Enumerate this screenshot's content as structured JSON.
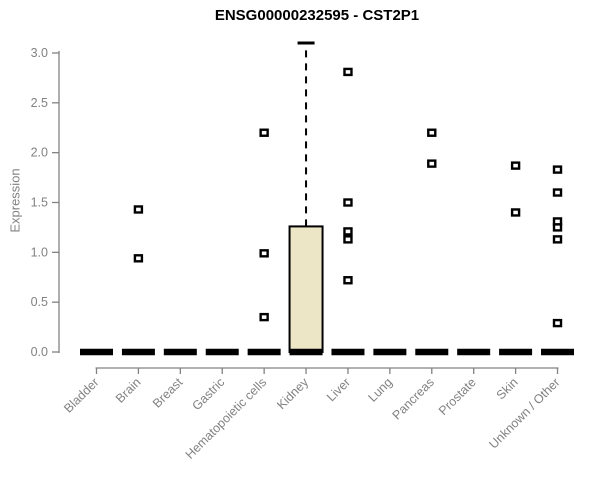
{
  "chart_data": {
    "type": "box",
    "title": "ENSG00000232595 - CST2P1",
    "ylabel": "Expression",
    "xlabel": "",
    "ylim": [
      0,
      3.1
    ],
    "yticks": [
      0.0,
      0.5,
      1.0,
      1.5,
      2.0,
      2.5,
      3.0
    ],
    "grid": false,
    "legend": "none",
    "categories": [
      "Bladder",
      "Brain",
      "Breast",
      "Gastric",
      "Hematopoietic cells",
      "Kidney",
      "Liver",
      "Lung",
      "Pancreas",
      "Prostate",
      "Skin",
      "Unknown / Other"
    ],
    "series": [
      {
        "name": "Bladder",
        "q1": 0,
        "median": 0,
        "q3": 0,
        "whisker_low": 0,
        "whisker_high": 0,
        "outliers": []
      },
      {
        "name": "Brain",
        "q1": 0,
        "median": 0,
        "q3": 0,
        "whisker_low": 0,
        "whisker_high": 0,
        "outliers": [
          1.43,
          0.94
        ]
      },
      {
        "name": "Breast",
        "q1": 0,
        "median": 0,
        "q3": 0,
        "whisker_low": 0,
        "whisker_high": 0,
        "outliers": []
      },
      {
        "name": "Gastric",
        "q1": 0,
        "median": 0,
        "q3": 0,
        "whisker_low": 0,
        "whisker_high": 0,
        "outliers": []
      },
      {
        "name": "Hematopoietic cells",
        "q1": 0,
        "median": 0,
        "q3": 0,
        "whisker_low": 0,
        "whisker_high": 0,
        "outliers": [
          2.2,
          0.99,
          0.35
        ]
      },
      {
        "name": "Kidney",
        "q1": 0,
        "median": 0,
        "q3": 1.26,
        "whisker_low": 0,
        "whisker_high": 3.1,
        "outliers": []
      },
      {
        "name": "Liver",
        "q1": 0,
        "median": 0,
        "q3": 0,
        "whisker_low": 0,
        "whisker_high": 0,
        "outliers": [
          2.81,
          1.5,
          1.21,
          1.13,
          0.72
        ]
      },
      {
        "name": "Lung",
        "q1": 0,
        "median": 0,
        "q3": 0,
        "whisker_low": 0,
        "whisker_high": 0,
        "outliers": []
      },
      {
        "name": "Pancreas",
        "q1": 0,
        "median": 0,
        "q3": 0,
        "whisker_low": 0,
        "whisker_high": 0,
        "outliers": [
          2.2,
          1.89
        ]
      },
      {
        "name": "Prostate",
        "q1": 0,
        "median": 0,
        "q3": 0,
        "whisker_low": 0,
        "whisker_high": 0,
        "outliers": []
      },
      {
        "name": "Skin",
        "q1": 0,
        "median": 0,
        "q3": 0,
        "whisker_low": 0,
        "whisker_high": 0,
        "outliers": [
          1.87,
          1.4
        ]
      },
      {
        "name": "Unknown / Other",
        "q1": 0,
        "median": 0,
        "q3": 0,
        "whisker_low": 0,
        "whisker_high": 0,
        "outliers": [
          1.83,
          1.6,
          1.31,
          1.25,
          1.13,
          0.29
        ]
      }
    ],
    "colors": {
      "box_fill": "#ece5c6",
      "box_border": "#000000",
      "whisker": "#000000",
      "outlier": "#000000",
      "axis": "#828282",
      "title": "#000000"
    }
  }
}
